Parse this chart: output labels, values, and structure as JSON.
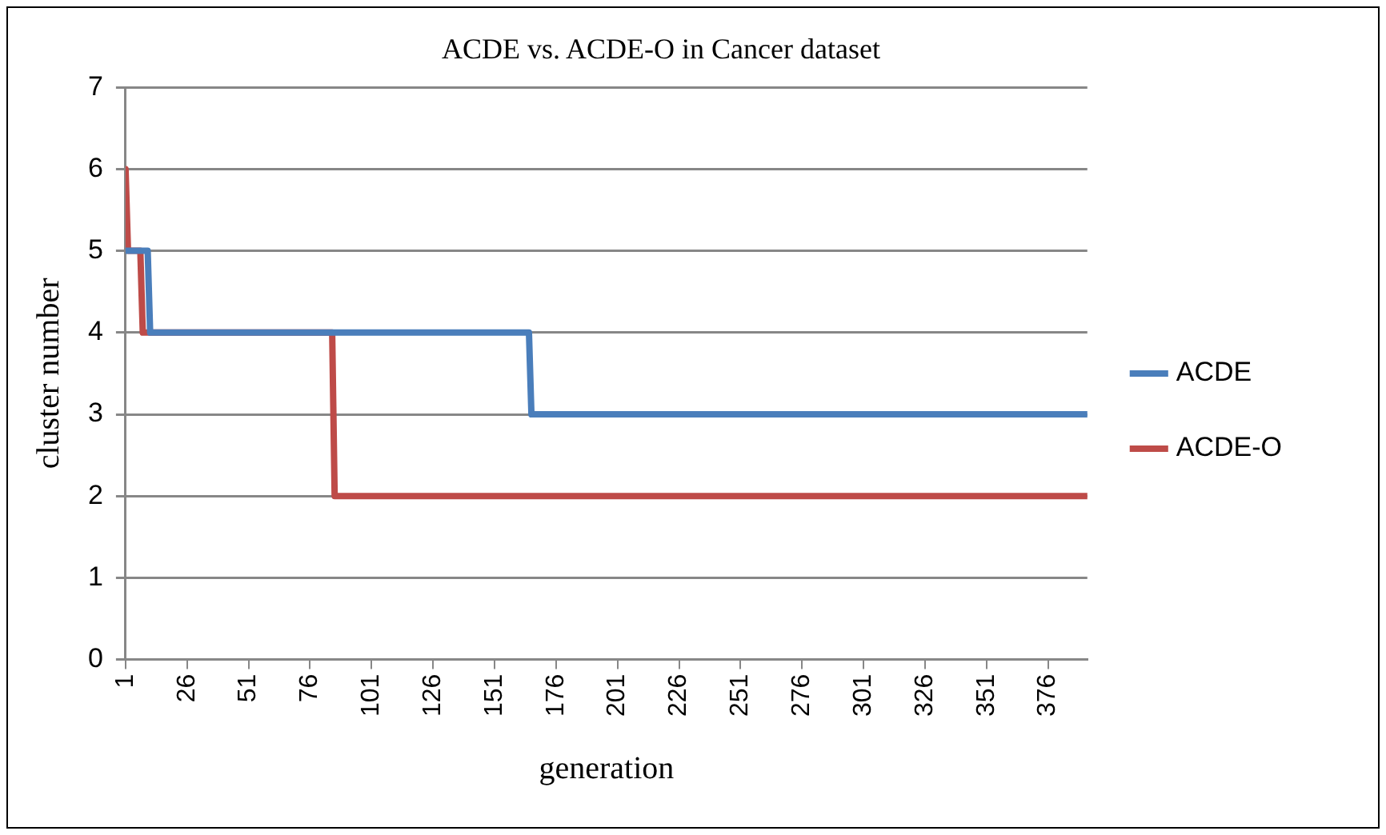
{
  "chart_data": {
    "type": "line",
    "title": "ACDE vs. ACDE-O in Cancer dataset",
    "xlabel": "generation",
    "ylabel": "cluster number",
    "xlim": [
      1,
      392
    ],
    "xticks": [
      1,
      26,
      51,
      76,
      101,
      126,
      151,
      176,
      201,
      226,
      251,
      276,
      301,
      326,
      351,
      376
    ],
    "ylim": [
      0,
      7
    ],
    "yticks": [
      0,
      1,
      2,
      3,
      4,
      5,
      6,
      7
    ],
    "grid": "y",
    "legend": "right",
    "marker": "none",
    "line_style": "solid",
    "series": [
      {
        "name": "ACDE",
        "color": "#4a7ebb",
        "x": [
          1,
          10,
          11,
          165,
          166,
          392
        ],
        "values": [
          5,
          5,
          4,
          4,
          3,
          3
        ]
      },
      {
        "name": "ACDE-O",
        "color": "#be4b48",
        "x": [
          1,
          2,
          7,
          8,
          85,
          86,
          392
        ],
        "values": [
          6,
          5,
          5,
          4,
          4,
          2,
          2
        ]
      }
    ]
  }
}
